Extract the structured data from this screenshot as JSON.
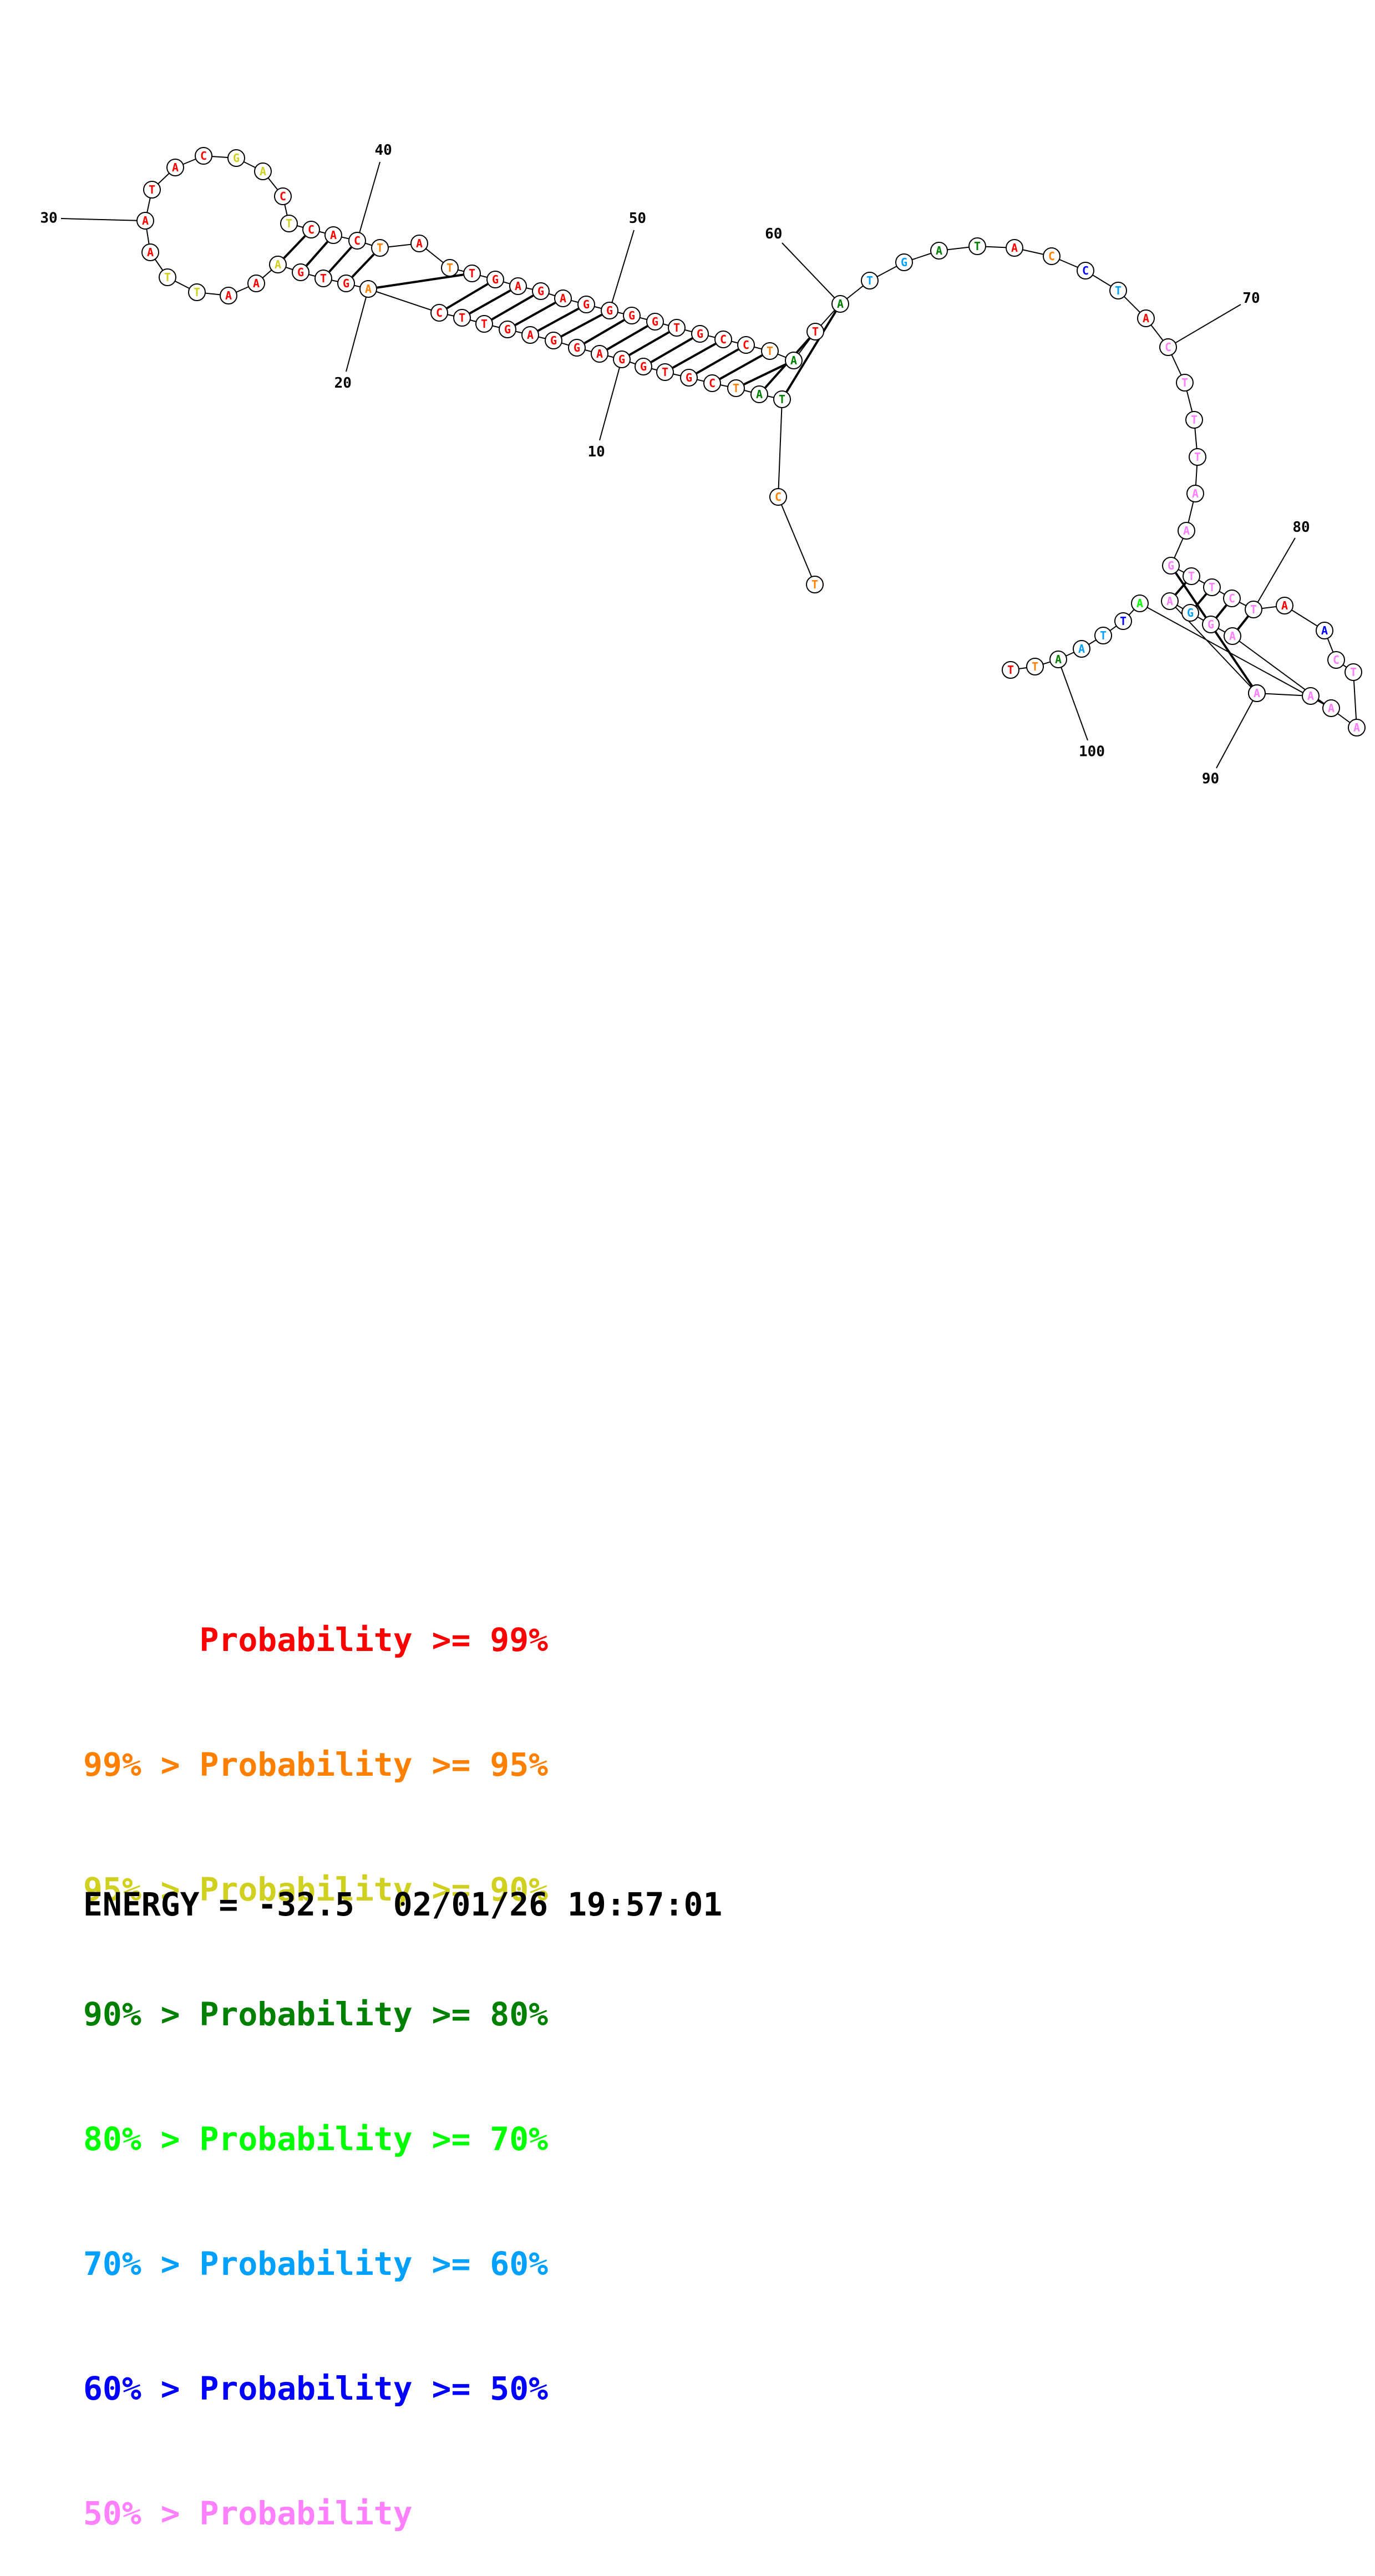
{
  "colors": {
    "c99": "#ff0000",
    "c95": "#ff8000",
    "c90": "#d0d020",
    "c80": "#008000",
    "c70": "#00ff00",
    "c60": "#00a0ff",
    "c50": "#0000ff",
    "cLow": "#ff80ff"
  },
  "sequence": [
    {
      "n": 1,
      "b": "T",
      "c": "c95"
    },
    {
      "n": 2,
      "b": "C",
      "c": "c95"
    },
    {
      "n": 3,
      "b": "T",
      "c": "c80"
    },
    {
      "n": 4,
      "b": "A",
      "c": "c80"
    },
    {
      "n": 5,
      "b": "T",
      "c": "c95"
    },
    {
      "n": 6,
      "b": "C",
      "c": "c99"
    },
    {
      "n": 7,
      "b": "G",
      "c": "c99"
    },
    {
      "n": 8,
      "b": "T",
      "c": "c99"
    },
    {
      "n": 9,
      "b": "G",
      "c": "c99"
    },
    {
      "n": 10,
      "b": "G",
      "c": "c99"
    },
    {
      "n": 11,
      "b": "A",
      "c": "c99"
    },
    {
      "n": 12,
      "b": "G",
      "c": "c99"
    },
    {
      "n": 13,
      "b": "G",
      "c": "c99"
    },
    {
      "n": 14,
      "b": "A",
      "c": "c99"
    },
    {
      "n": 15,
      "b": "G",
      "c": "c99"
    },
    {
      "n": 16,
      "b": "T",
      "c": "c99"
    },
    {
      "n": 17,
      "b": "T",
      "c": "c99"
    },
    {
      "n": 18,
      "b": "C",
      "c": "c99"
    },
    {
      "n": 19,
      "b": "A",
      "c": "c95"
    },
    {
      "n": 20,
      "b": "G",
      "c": "c99"
    },
    {
      "n": 21,
      "b": "T",
      "c": "c99"
    },
    {
      "n": 22,
      "b": "G",
      "c": "c99"
    },
    {
      "n": 23,
      "b": "A",
      "c": "c90"
    },
    {
      "n": 24,
      "b": "A",
      "c": "c99"
    },
    {
      "n": 25,
      "b": "A",
      "c": "c99"
    },
    {
      "n": 26,
      "b": "T",
      "c": "c90"
    },
    {
      "n": 27,
      "b": "T",
      "c": "c90"
    },
    {
      "n": 28,
      "b": "A",
      "c": "c99"
    },
    {
      "n": 29,
      "b": "A",
      "c": "c99"
    },
    {
      "n": 30,
      "b": "T",
      "c": "c99"
    },
    {
      "n": 31,
      "b": "A",
      "c": "c99"
    },
    {
      "n": 32,
      "b": "C",
      "c": "c99"
    },
    {
      "n": 33,
      "b": "G",
      "c": "c90"
    },
    {
      "n": 34,
      "b": "A",
      "c": "c90"
    },
    {
      "n": 35,
      "b": "C",
      "c": "c99"
    },
    {
      "n": 36,
      "b": "T",
      "c": "c90"
    },
    {
      "n": 37,
      "b": "C",
      "c": "c99"
    },
    {
      "n": 38,
      "b": "A",
      "c": "c99"
    },
    {
      "n": 39,
      "b": "C",
      "c": "c99"
    },
    {
      "n": 40,
      "b": "T",
      "c": "c95"
    },
    {
      "n": 41,
      "b": "A",
      "c": "c99"
    },
    {
      "n": 42,
      "b": "T",
      "c": "c95"
    },
    {
      "n": 43,
      "b": "T",
      "c": "c99"
    },
    {
      "n": 44,
      "b": "G",
      "c": "c99"
    },
    {
      "n": 45,
      "b": "A",
      "c": "c99"
    },
    {
      "n": 46,
      "b": "G",
      "c": "c99"
    },
    {
      "n": 47,
      "b": "A",
      "c": "c99"
    },
    {
      "n": 48,
      "b": "G",
      "c": "c99"
    },
    {
      "n": 49,
      "b": "G",
      "c": "c99"
    },
    {
      "n": 50,
      "b": "G",
      "c": "c99"
    },
    {
      "n": 51,
      "b": "G",
      "c": "c99"
    },
    {
      "n": 52,
      "b": "T",
      "c": "c99"
    },
    {
      "n": 53,
      "b": "G",
      "c": "c99"
    },
    {
      "n": 54,
      "b": "C",
      "c": "c99"
    },
    {
      "n": 55,
      "b": "C",
      "c": "c99"
    },
    {
      "n": 56,
      "b": "T",
      "c": "c95"
    },
    {
      "n": 57,
      "b": "A",
      "c": "c80"
    },
    {
      "n": 58,
      "b": "T",
      "c": "c99"
    },
    {
      "n": 59,
      "b": "A",
      "c": "c80"
    },
    {
      "n": 60,
      "b": "T",
      "c": "c60"
    },
    {
      "n": 61,
      "b": "G",
      "c": "c60"
    },
    {
      "n": 62,
      "b": "A",
      "c": "c80"
    },
    {
      "n": 63,
      "b": "T",
      "c": "c80"
    },
    {
      "n": 64,
      "b": "A",
      "c": "c99"
    },
    {
      "n": 65,
      "b": "C",
      "c": "c95"
    },
    {
      "n": 66,
      "b": "C",
      "c": "c50"
    },
    {
      "n": 67,
      "b": "T",
      "c": "c60"
    },
    {
      "n": 68,
      "b": "A",
      "c": "c99"
    },
    {
      "n": 69,
      "b": "C",
      "c": "cLow"
    },
    {
      "n": 70,
      "b": "T",
      "c": "cLow"
    },
    {
      "n": 71,
      "b": "T",
      "c": "cLow"
    },
    {
      "n": 72,
      "b": "T",
      "c": "cLow"
    },
    {
      "n": 73,
      "b": "A",
      "c": "cLow"
    },
    {
      "n": 74,
      "b": "A",
      "c": "cLow"
    },
    {
      "n": 75,
      "b": "G",
      "c": "cLow"
    },
    {
      "n": 76,
      "b": "T",
      "c": "cLow"
    },
    {
      "n": 77,
      "b": "T",
      "c": "cLow"
    },
    {
      "n": 78,
      "b": "C",
      "c": "cLow"
    },
    {
      "n": 79,
      "b": "T",
      "c": "cLow"
    },
    {
      "n": 80,
      "b": "A",
      "c": "c99"
    },
    {
      "n": 81,
      "b": "A",
      "c": "c50"
    },
    {
      "n": 82,
      "b": "C",
      "c": "cLow"
    },
    {
      "n": 83,
      "b": "T",
      "c": "cLow"
    },
    {
      "n": 84,
      "b": "A",
      "c": "cLow"
    },
    {
      "n": 85,
      "b": "A",
      "c": "cLow"
    },
    {
      "n": 86,
      "b": "G",
      "c": "cLow"
    },
    {
      "n": 87,
      "b": "G",
      "c": "c60"
    },
    {
      "n": 88,
      "b": "A",
      "c": "cLow"
    },
    {
      "n": 89,
      "b": "G",
      "c": "cLow"
    },
    {
      "n": 90,
      "b": "A",
      "c": "cLow"
    },
    {
      "n": 91,
      "b": "A",
      "c": "cLow"
    },
    {
      "n": 92,
      "b": "A",
      "c": "cLow"
    },
    {
      "n": 93,
      "b": "A",
      "c": "c70"
    },
    {
      "n": 94,
      "b": "T",
      "c": "c50"
    },
    {
      "n": 95,
      "b": "T",
      "c": "c60"
    },
    {
      "n": 96,
      "b": "A",
      "c": "c60"
    },
    {
      "n": 97,
      "b": "A",
      "c": "c80"
    },
    {
      "n": 98,
      "b": "T",
      "c": "c95"
    },
    {
      "n": 99,
      "b": "T",
      "c": "c99"
    }
  ],
  "pairs": [
    [
      3,
      59
    ],
    [
      4,
      58
    ],
    [
      5,
      57
    ],
    [
      6,
      56
    ],
    [
      7,
      55
    ],
    [
      8,
      54
    ],
    [
      9,
      53
    ],
    [
      10,
      52
    ],
    [
      11,
      51
    ],
    [
      12,
      50
    ],
    [
      13,
      49
    ],
    [
      14,
      48
    ],
    [
      15,
      47
    ],
    [
      16,
      46
    ],
    [
      17,
      45
    ],
    [
      18,
      44
    ],
    [
      19,
      43
    ],
    [
      20,
      40
    ],
    [
      21,
      39
    ],
    [
      22,
      38
    ],
    [
      23,
      37
    ],
    [
      75,
      89
    ],
    [
      76,
      88
    ],
    [
      77,
      87
    ],
    [
      78,
      86
    ],
    [
      79,
      85
    ]
  ],
  "tick_labels": [
    "10",
    "20",
    "30",
    "40",
    "50",
    "60",
    "70",
    "80",
    "90",
    "100"
  ],
  "legend": [
    {
      "prefix": "",
      "text": "Probability >= 99%",
      "color": "#ff0000"
    },
    {
      "prefix": "99% > ",
      "text": "Probability >= 95%",
      "color": "#ff8000"
    },
    {
      "prefix": "95% > ",
      "text": "Probability >= 90%",
      "color": "#d0d020"
    },
    {
      "prefix": "90% > ",
      "text": "Probability >= 80%",
      "color": "#008000"
    },
    {
      "prefix": "80% > ",
      "text": "Probability >= 70%",
      "color": "#00ff00"
    },
    {
      "prefix": "70% > ",
      "text": "Probability >= 60%",
      "color": "#00a0ff"
    },
    {
      "prefix": "60% > ",
      "text": "Probability >= 50%",
      "color": "#0000ff"
    },
    {
      "prefix": "50% > ",
      "text": "Probability",
      "color": "#ff80ff"
    }
  ],
  "footer": {
    "energy": "ENERGY = -32.5",
    "timestamp": "02/01/26 19:57:01"
  }
}
